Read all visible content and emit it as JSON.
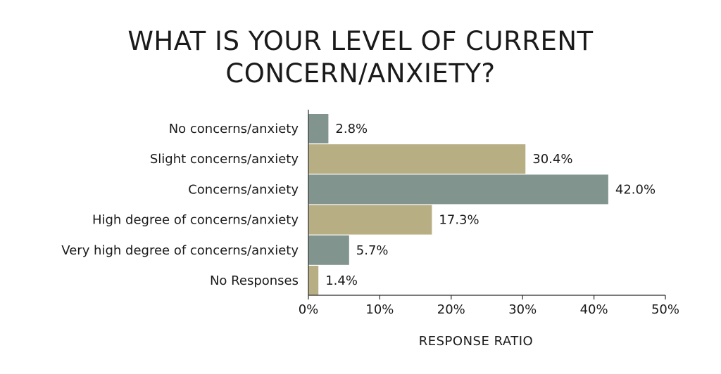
{
  "chart_data": {
    "type": "bar",
    "orientation": "horizontal",
    "title_lines": [
      "WHAT IS YOUR LEVEL OF CURRENT",
      "CONCERN/ANXIETY?"
    ],
    "xlabel": "RESPONSE RATIO",
    "ylabel": "",
    "xlim": [
      0,
      50
    ],
    "xticks": [
      0,
      10,
      20,
      30,
      40,
      50
    ],
    "xtick_labels": [
      "0%",
      "10%",
      "20%",
      "30%",
      "40%",
      "50%"
    ],
    "categories": [
      "No concerns/anxiety",
      "Slight concerns/anxiety",
      "Concerns/anxiety",
      "High degree of concerns/anxiety",
      "Very high degree of concerns/anxiety",
      "No Responses"
    ],
    "values": [
      2.8,
      30.4,
      42.0,
      17.3,
      5.7,
      1.4
    ],
    "value_labels": [
      "2.8%",
      "30.4%",
      "42.0%",
      "17.3%",
      "5.7%",
      "1.4%"
    ],
    "bar_colors": [
      "#82948e",
      "#b8ae84",
      "#82948e",
      "#b8ae84",
      "#82948e",
      "#b8ae84"
    ],
    "grid": false,
    "legend": "none"
  }
}
